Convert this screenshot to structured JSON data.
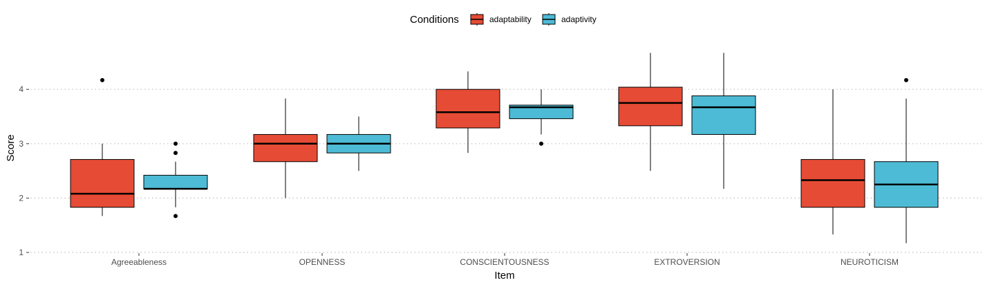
{
  "chart_data": {
    "type": "box",
    "xlabel": "Item",
    "ylabel": "Score",
    "ylim": [
      1,
      4.7
    ],
    "yticks": [
      1,
      2,
      3,
      4
    ],
    "grid": "horizontal dotted",
    "legend": {
      "title": "Conditions",
      "position": "top",
      "entries": [
        {
          "label": "adaptability",
          "color": "#E64B35"
        },
        {
          "label": "adaptivity",
          "color": "#4DBBD5"
        }
      ]
    },
    "categories": [
      "Agreeableness",
      "OPENNESS",
      "CONSCIENTOUSNESS",
      "EXTROVERSION",
      "NEUROTICISM"
    ],
    "series": [
      {
        "name": "adaptability",
        "color": "#E64B35",
        "boxes": [
          {
            "min": 1.67,
            "q1": 1.83,
            "median": 2.08,
            "q3": 2.71,
            "max": 3.0,
            "outliers": [
              4.17
            ]
          },
          {
            "min": 2.0,
            "q1": 2.67,
            "median": 3.0,
            "q3": 3.17,
            "max": 3.83,
            "outliers": []
          },
          {
            "min": 2.83,
            "q1": 3.29,
            "median": 3.58,
            "q3": 4.0,
            "max": 4.33,
            "outliers": []
          },
          {
            "min": 2.5,
            "q1": 3.33,
            "median": 3.75,
            "q3": 4.04,
            "max": 4.67,
            "outliers": []
          },
          {
            "min": 1.33,
            "q1": 1.83,
            "median": 2.33,
            "q3": 2.71,
            "max": 4.0,
            "outliers": []
          }
        ]
      },
      {
        "name": "adaptivity",
        "color": "#4DBBD5",
        "boxes": [
          {
            "min": 1.83,
            "q1": 2.17,
            "median": 2.17,
            "q3": 2.42,
            "max": 2.67,
            "outliers": [
              3.0,
              2.83,
              1.67
            ]
          },
          {
            "min": 2.5,
            "q1": 2.83,
            "median": 3.0,
            "q3": 3.17,
            "max": 3.5,
            "outliers": []
          },
          {
            "min": 3.17,
            "q1": 3.46,
            "median": 3.67,
            "q3": 3.71,
            "max": 4.0,
            "outliers": [
              3.0
            ]
          },
          {
            "min": 2.17,
            "q1": 3.17,
            "median": 3.67,
            "q3": 3.88,
            "max": 4.67,
            "outliers": []
          },
          {
            "min": 1.17,
            "q1": 1.83,
            "median": 2.25,
            "q3": 2.67,
            "max": 3.83,
            "outliers": [
              4.17
            ]
          }
        ]
      }
    ]
  }
}
